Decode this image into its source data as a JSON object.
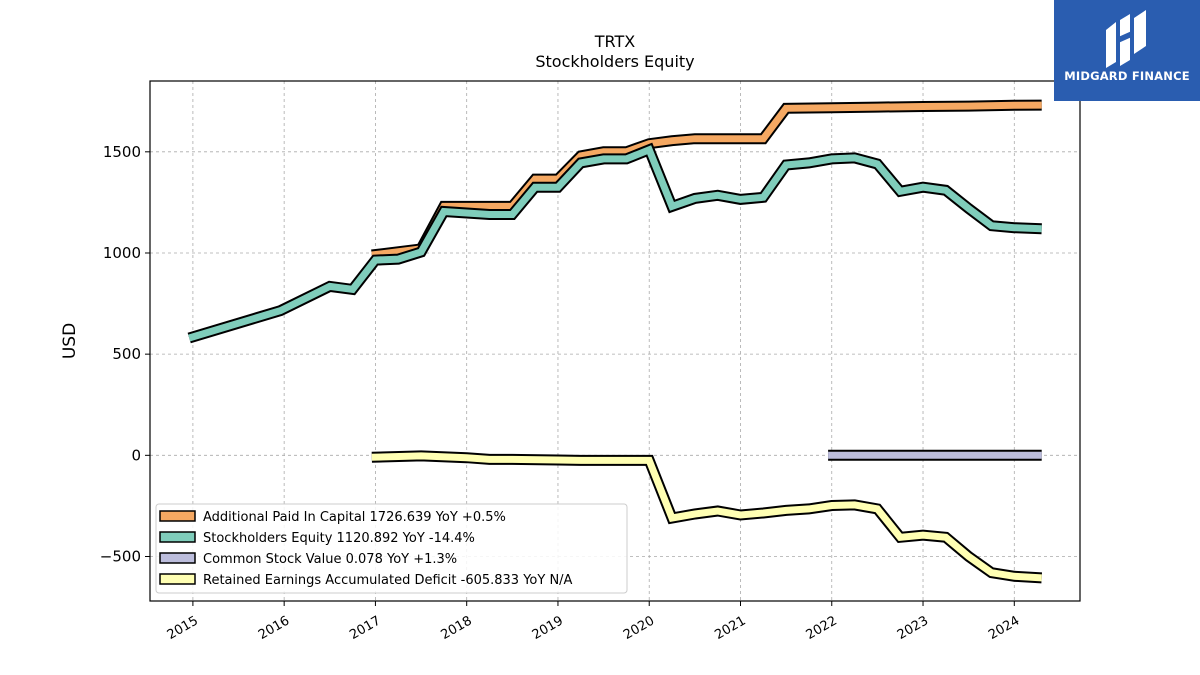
{
  "chart_data": {
    "type": "line",
    "title": "TRTX",
    "subtitle": "Stockholders  Equity",
    "ylabel": "USD",
    "xlabel": "",
    "ylim": [
      -720,
      1850
    ],
    "xlim": [
      2014.53,
      2024.72
    ],
    "yticks": [
      -500,
      0,
      500,
      1000,
      1500
    ],
    "ytick_labels": [
      "−500",
      "0",
      "500",
      "1000",
      "1500"
    ],
    "xticks": [
      2015,
      2016,
      2017,
      2018,
      2019,
      2020,
      2021,
      2022,
      2023,
      2024
    ],
    "xtick_labels": [
      "2015",
      "2016",
      "2017",
      "2018",
      "2019",
      "2020",
      "2021",
      "2022",
      "2023",
      "2024"
    ],
    "grid": true,
    "legend_position": "lower-left",
    "series": [
      {
        "name": "Additional Paid In Capital",
        "legend": "Additional Paid In Capital  1726.639 YoY +0.5%",
        "color": "#f5a862",
        "points": [
          [
            2016.96,
            990
          ],
          [
            2017.5,
            1020
          ],
          [
            2017.75,
            1230
          ],
          [
            2018.25,
            1230
          ],
          [
            2018.5,
            1230
          ],
          [
            2018.75,
            1365
          ],
          [
            2019.0,
            1365
          ],
          [
            2019.25,
            1480
          ],
          [
            2019.5,
            1500
          ],
          [
            2019.75,
            1500
          ],
          [
            2020.0,
            1540
          ],
          [
            2020.25,
            1555
          ],
          [
            2020.5,
            1565
          ],
          [
            2020.75,
            1565
          ],
          [
            2021.0,
            1565
          ],
          [
            2021.25,
            1565
          ],
          [
            2021.5,
            1715
          ],
          [
            2022.0,
            1718
          ],
          [
            2022.5,
            1721
          ],
          [
            2023.0,
            1724
          ],
          [
            2023.5,
            1726
          ],
          [
            2024.0,
            1730
          ],
          [
            2024.3,
            1731
          ]
        ]
      },
      {
        "name": "Stockholders Equity",
        "legend": "Stockholders Equity  1120.892 YoY -14.4%",
        "color": "#7fcdbb",
        "points": [
          [
            2014.96,
            580
          ],
          [
            2015.96,
            715
          ],
          [
            2016.5,
            835
          ],
          [
            2016.75,
            820
          ],
          [
            2017.0,
            965
          ],
          [
            2017.25,
            970
          ],
          [
            2017.5,
            1005
          ],
          [
            2017.75,
            1205
          ],
          [
            2018.25,
            1190
          ],
          [
            2018.5,
            1190
          ],
          [
            2018.75,
            1325
          ],
          [
            2019.0,
            1325
          ],
          [
            2019.25,
            1445
          ],
          [
            2019.5,
            1465
          ],
          [
            2019.75,
            1465
          ],
          [
            2020.0,
            1510
          ],
          [
            2020.25,
            1230
          ],
          [
            2020.5,
            1270
          ],
          [
            2020.75,
            1285
          ],
          [
            2021.0,
            1265
          ],
          [
            2021.25,
            1275
          ],
          [
            2021.5,
            1435
          ],
          [
            2021.75,
            1445
          ],
          [
            2022.0,
            1465
          ],
          [
            2022.25,
            1470
          ],
          [
            2022.5,
            1440
          ],
          [
            2022.75,
            1305
          ],
          [
            2023.0,
            1325
          ],
          [
            2023.25,
            1310
          ],
          [
            2023.5,
            1220
          ],
          [
            2023.75,
            1135
          ],
          [
            2024.0,
            1125
          ],
          [
            2024.3,
            1120
          ]
        ]
      },
      {
        "name": "Common Stock Value",
        "legend": "Common Stock Value  0.078 YoY +1.3%",
        "color": "#bcbddc",
        "points": [
          [
            2021.96,
            0.07
          ],
          [
            2022.5,
            0.075
          ],
          [
            2023.0,
            0.076
          ],
          [
            2023.5,
            0.077
          ],
          [
            2024.0,
            0.077
          ],
          [
            2024.3,
            0.078
          ]
        ]
      },
      {
        "name": "Retained Earnings Accumulated Deficit",
        "legend": "Retained Earnings Accumulated Deficit  -605.833 YoY N/A",
        "color": "#ffffb3",
        "points": [
          [
            2016.96,
            -10
          ],
          [
            2017.5,
            -3
          ],
          [
            2018.0,
            -12
          ],
          [
            2018.25,
            -20
          ],
          [
            2018.5,
            -20
          ],
          [
            2019.0,
            -23
          ],
          [
            2019.25,
            -25
          ],
          [
            2019.5,
            -25
          ],
          [
            2020.0,
            -25
          ],
          [
            2020.25,
            -310
          ],
          [
            2020.5,
            -290
          ],
          [
            2020.75,
            -275
          ],
          [
            2021.0,
            -295
          ],
          [
            2021.25,
            -285
          ],
          [
            2021.5,
            -272
          ],
          [
            2021.75,
            -265
          ],
          [
            2022.0,
            -248
          ],
          [
            2022.25,
            -245
          ],
          [
            2022.5,
            -265
          ],
          [
            2022.75,
            -405
          ],
          [
            2023.0,
            -395
          ],
          [
            2023.25,
            -405
          ],
          [
            2023.5,
            -500
          ],
          [
            2023.75,
            -580
          ],
          [
            2024.0,
            -598
          ],
          [
            2024.3,
            -606
          ]
        ]
      }
    ]
  },
  "logo": {
    "text": "MIDGARD FINANCE",
    "icon": "midgard-logo-mark",
    "color": "#2a5db0"
  }
}
